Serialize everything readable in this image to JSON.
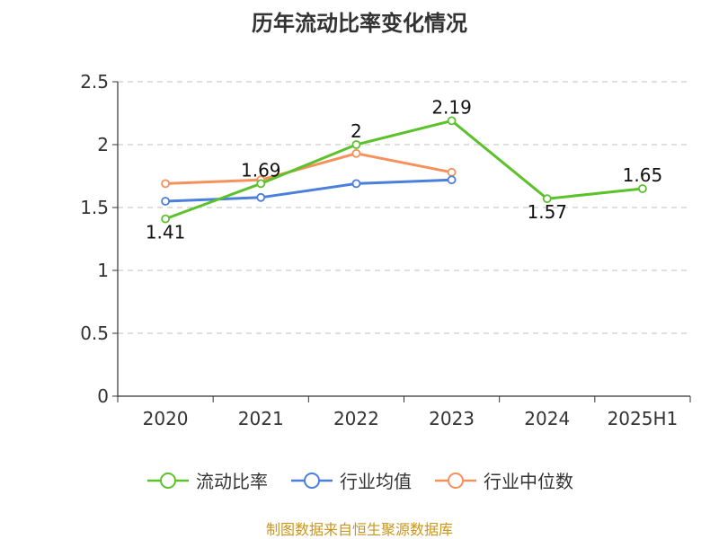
{
  "chart_data": {
    "type": "line",
    "title": "历年流动比率变化情况",
    "categories": [
      "2020",
      "2021",
      "2022",
      "2023",
      "2024",
      "2025H1"
    ],
    "ylim": [
      0,
      2.5
    ],
    "yticks": [
      "0",
      "0.5",
      "1",
      "1.5",
      "2",
      "2.5"
    ],
    "ytick_values": [
      0,
      0.5,
      1,
      1.5,
      2,
      2.5
    ],
    "grid": true,
    "legend_position": "bottom",
    "series": [
      {
        "name": "流动比率",
        "color": "#5cc22b",
        "values": [
          1.41,
          1.69,
          2,
          2.19,
          1.57,
          1.65
        ],
        "labels": [
          "1.41",
          "1.69",
          "2",
          "2.19",
          "1.57",
          "1.65"
        ]
      },
      {
        "name": "行业均值",
        "color": "#4a7fdb",
        "values": [
          1.55,
          1.58,
          1.69,
          1.72,
          null,
          null
        ]
      },
      {
        "name": "行业中位数",
        "color": "#f5915a",
        "values": [
          1.69,
          1.72,
          1.93,
          1.78,
          null,
          null
        ]
      }
    ]
  },
  "footer": {
    "source": "制图数据来自恒生聚源数据库"
  }
}
